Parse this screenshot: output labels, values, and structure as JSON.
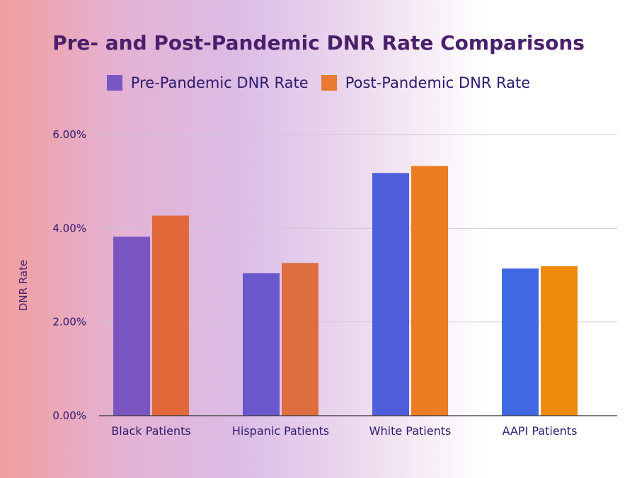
{
  "chart_data": {
    "type": "bar",
    "title": "Pre- and Post-Pandemic DNR Rate Comparisons",
    "xlabel": "",
    "ylabel": "DNR Rate",
    "categories": [
      "Black Patients",
      "Hispanic Patients",
      "White Patients",
      "AAPI Patients"
    ],
    "series": [
      {
        "name": "Pre-Pandemic DNR Rate",
        "values": [
          3.82,
          3.04,
          5.18,
          3.14
        ]
      },
      {
        "name": "Post-Pandemic DNR Rate",
        "values": [
          4.27,
          3.26,
          5.33,
          3.19
        ]
      }
    ],
    "ylim": [
      0,
      6
    ],
    "yticks": [
      0,
      2,
      4,
      6
    ],
    "ytick_labels": [
      "0.00%",
      "2.00%",
      "4.00%",
      "6.00%"
    ],
    "grid": true,
    "legend_position": "top-center"
  },
  "colors": {
    "title": "#4a1f6b",
    "text": "#2e1a6e",
    "pre_legend": "#7a56c2",
    "post_legend": "#e87a32",
    "pre_bars": [
      "#7a55bf",
      "#6a57cc",
      "#4f5fdc",
      "#3f68e2"
    ],
    "post_bars": [
      "#e2683a",
      "#de6e40",
      "#ec7d22",
      "#f08a0a"
    ],
    "grid": "#cfc6d8",
    "axis": "#333333"
  }
}
